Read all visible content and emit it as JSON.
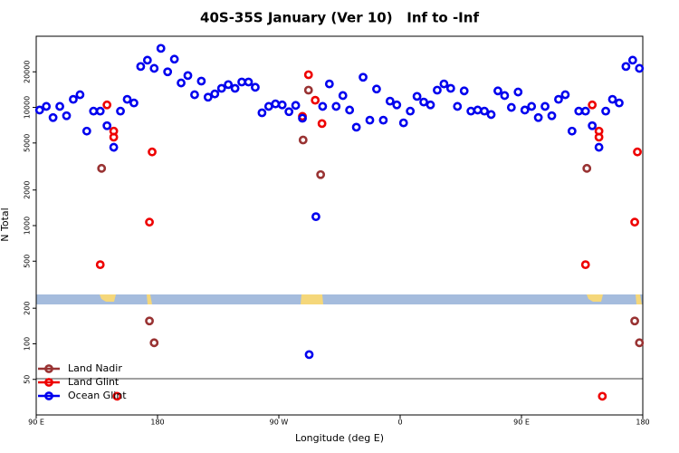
{
  "chart_data": {
    "type": "scatter",
    "title": "40S-35S January (Ver 10)   Inf to -Inf",
    "xlabel": "Longitude (deg E)",
    "ylabel": "N Total",
    "xlim": [
      90,
      540
    ],
    "xticks": [
      {
        "value": 90,
        "label": "90 E"
      },
      180,
      {
        "value": 270,
        "label": "90 W"
      },
      {
        "value": 360,
        "label": "0"
      },
      {
        "value": 450,
        "label": "90 E"
      },
      180
    ],
    "ylim": [
      25,
      40000
    ],
    "yscale": "log",
    "yticks": [
      50,
      100,
      200,
      500,
      1000,
      2000,
      5000,
      10000,
      20000
    ],
    "legend": "lower left",
    "series": [
      {
        "name": "Land Nadir",
        "color": "#993333",
        "x": [
          138.5,
          174,
          177.5,
          288,
          292,
          301,
          498.5,
          534,
          537.5
        ],
        "values": [
          3050,
          156,
          102,
          5300,
          14000,
          2700,
          3050,
          156,
          102
        ]
      },
      {
        "name": "Land Glint",
        "color": "#ee0000",
        "x": [
          137.5,
          142.5,
          147.5,
          147.5,
          150,
          174,
          176,
          287.5,
          292,
          297,
          302,
          497.5,
          502.5,
          507.5,
          507.5,
          510,
          534,
          536
        ],
        "values": [
          467,
          10500,
          6300,
          5600,
          36,
          1070,
          4200,
          8400,
          18900,
          11500,
          7300,
          467,
          10500,
          6300,
          5600,
          36,
          1070,
          4200
        ]
      },
      {
        "name": "Ocean Glint",
        "color": "#0000ee",
        "x": [
          92.5,
          97.5,
          102.5,
          107.5,
          112.5,
          117.5,
          122.5,
          127.5,
          132.5,
          137.5,
          142.5,
          147.5,
          152.5,
          157.5,
          162.5,
          167.5,
          172.5,
          177.5,
          182.5,
          187.5,
          192.5,
          197.5,
          202.5,
          207.5,
          212.5,
          217.5,
          222.5,
          227.5,
          232.5,
          237.5,
          242.5,
          247.5,
          252.5,
          257.5,
          262.5,
          267.5,
          272.5,
          277.5,
          282.5,
          287.5,
          292.5,
          297.5,
          302.5,
          307.5,
          312.5,
          317.5,
          322.5,
          327.5,
          332.5,
          337.5,
          342.5,
          347.5,
          352.5,
          357.5,
          362.5,
          367.5,
          372.5,
          377.5,
          382.5,
          387.5,
          392.5,
          397.5,
          402.5,
          407.5,
          412.5,
          417.5,
          422.5,
          427.5,
          432.5,
          437.5,
          442.5,
          447.5,
          452.5,
          457.5,
          462.5,
          467.5,
          472.5,
          477.5,
          482.5,
          487.5,
          492.5,
          497.5,
          502.5,
          507.5,
          512.5,
          517.5,
          522.5,
          527.5,
          532.5,
          537.5
        ],
        "values": [
          9500,
          10200,
          8200,
          10200,
          8500,
          11700,
          12800,
          6300,
          9300,
          9300,
          7000,
          4600,
          9300,
          11700,
          10900,
          22200,
          25100,
          21400,
          31600,
          20000,
          25600,
          16100,
          18600,
          12800,
          16700,
          12200,
          13000,
          14500,
          15600,
          14500,
          16400,
          16400,
          14800,
          9000,
          10200,
          10700,
          10500,
          9200,
          10400,
          8100,
          81,
          1190,
          10200,
          15800,
          10200,
          12600,
          9500,
          6800,
          18000,
          7800,
          14300,
          7800,
          11300,
          10500,
          7400,
          9300,
          12400,
          11100,
          10500,
          14000,
          15800,
          14500,
          10200,
          13800,
          9300,
          9500,
          9300,
          8700,
          13800,
          12600,
          10000,
          13500,
          9500,
          10200,
          8200,
          10200,
          8500,
          11700,
          12800,
          6300,
          9300,
          9300,
          7000,
          4600,
          9300,
          11700,
          10900,
          22200,
          25100,
          21400
        ]
      }
    ]
  }
}
